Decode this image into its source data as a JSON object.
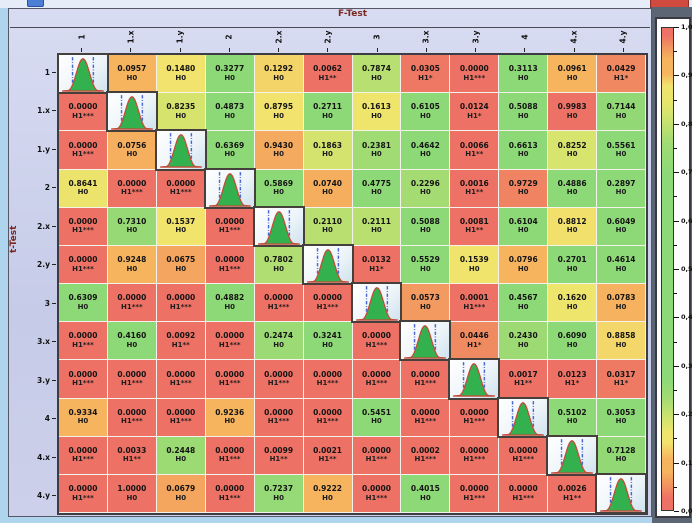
{
  "window": {
    "close_button_color": "#d04a40",
    "app_icon_color": "#4a7fd4"
  },
  "chart_data": {
    "type": "heatmap",
    "title_top": "F-Test",
    "title_left": "t-Test",
    "categories": [
      "1",
      "1.x",
      "1.y",
      "2",
      "2.x",
      "2.y",
      "3",
      "3.x",
      "3.y",
      "4",
      "4.x",
      "4.y"
    ],
    "diagonal_icon": "distribution-plot-thumbnail",
    "values": [
      [
        null,
        "0.0957",
        "0.1480",
        "0.3277",
        "0.1292",
        "0.0062",
        "0.7874",
        "0.0305",
        "0.0000",
        "0.3113",
        "0.0961",
        "0.0429"
      ],
      [
        "0.0000",
        null,
        "0.8235",
        "0.4873",
        "0.8795",
        "0.2711",
        "0.1613",
        "0.6105",
        "0.0124",
        "0.5088",
        "0.9983",
        "0.7144"
      ],
      [
        "0.0000",
        "0.0756",
        null,
        "0.6369",
        "0.9430",
        "0.1863",
        "0.2381",
        "0.4642",
        "0.0066",
        "0.6613",
        "0.8252",
        "0.5561"
      ],
      [
        "0.8641",
        "0.0000",
        "0.0000",
        null,
        "0.5869",
        "0.0740",
        "0.4775",
        "0.2296",
        "0.0016",
        "0.9729",
        "0.4886",
        "0.2897"
      ],
      [
        "0.0000",
        "0.7310",
        "0.1537",
        "0.0000",
        null,
        "0.2110",
        "0.2111",
        "0.5088",
        "0.0081",
        "0.6104",
        "0.8812",
        "0.6049"
      ],
      [
        "0.0000",
        "0.9248",
        "0.0675",
        "0.0000",
        "0.7802",
        null,
        "0.0132",
        "0.5529",
        "0.1539",
        "0.0796",
        "0.2701",
        "0.4614"
      ],
      [
        "0.6309",
        "0.0000",
        "0.0000",
        "0.4882",
        "0.0000",
        "0.0000",
        null,
        "0.0573",
        "0.0001",
        "0.4567",
        "0.1620",
        "0.0783"
      ],
      [
        "0.0000",
        "0.4160",
        "0.0092",
        "0.0000",
        "0.2474",
        "0.3241",
        "0.0000",
        null,
        "0.0446",
        "0.2430",
        "0.6090",
        "0.8858"
      ],
      [
        "0.0000",
        "0.0000",
        "0.0000",
        "0.0000",
        "0.0000",
        "0.0000",
        "0.0000",
        "0.0000",
        null,
        "0.0017",
        "0.0123",
        "0.0317"
      ],
      [
        "0.9334",
        "0.0000",
        "0.0000",
        "0.9236",
        "0.0000",
        "0.0000",
        "0.5451",
        "0.0000",
        "0.0000",
        null,
        "0.5102",
        "0.3053"
      ],
      [
        "0.0000",
        "0.0033",
        "0.2448",
        "0.0000",
        "0.0099",
        "0.0021",
        "0.0000",
        "0.0002",
        "0.0000",
        "0.0000",
        null,
        "0.7128"
      ],
      [
        "0.0000",
        "1.0000",
        "0.0679",
        "0.0000",
        "0.7237",
        "0.9222",
        "0.0000",
        "0.4015",
        "0.0000",
        "0.0000",
        "0.0026",
        null
      ]
    ],
    "hypotheses": [
      [
        null,
        "H0",
        "H0",
        "H0",
        "H0",
        "H1**",
        "H0",
        "H1*",
        "H1***",
        "H0",
        "H0",
        "H1*"
      ],
      [
        "H1***",
        null,
        "H0",
        "H0",
        "H0",
        "H0",
        "H0",
        "H0",
        "H1*",
        "H0",
        "H0",
        "H0"
      ],
      [
        "H1***",
        "H0",
        null,
        "H0",
        "H0",
        "H0",
        "H0",
        "H0",
        "H1**",
        "H0",
        "H0",
        "H0"
      ],
      [
        "H0",
        "H1***",
        "H1***",
        null,
        "H0",
        "H0",
        "H0",
        "H0",
        "H1**",
        "H0",
        "H0",
        "H0"
      ],
      [
        "H1***",
        "H0",
        "H0",
        "H1***",
        null,
        "H0",
        "H0",
        "H0",
        "H1**",
        "H0",
        "H0",
        "H0"
      ],
      [
        "H1***",
        "H0",
        "H0",
        "H1***",
        "H0",
        null,
        "H1*",
        "H0",
        "H0",
        "H0",
        "H0",
        "H0"
      ],
      [
        "H0",
        "H1***",
        "H1***",
        "H0",
        "H1***",
        "H1***",
        null,
        "H0",
        "H1***",
        "H0",
        "H0",
        "H0"
      ],
      [
        "H1***",
        "H0",
        "H1**",
        "H1***",
        "H0",
        "H0",
        "H1***",
        null,
        "H1*",
        "H0",
        "H0",
        "H0"
      ],
      [
        "H1***",
        "H1***",
        "H1***",
        "H1***",
        "H1***",
        "H1***",
        "H1***",
        "H1***",
        null,
        "H1**",
        "H1*",
        "H1*"
      ],
      [
        "H0",
        "H1***",
        "H1***",
        "H0",
        "H1***",
        "H1***",
        "H0",
        "H1***",
        "H1***",
        null,
        "H0",
        "H0"
      ],
      [
        "H1***",
        "H1**",
        "H0",
        "H1***",
        "H1**",
        "H1**",
        "H1***",
        "H1***",
        "H1***",
        "H1***",
        null,
        "H0"
      ],
      [
        "H1***",
        "H0",
        "H0",
        "H1***",
        "H0",
        "H0",
        "H1***",
        "H0",
        "H1***",
        "H1***",
        "H1**",
        null
      ]
    ],
    "colorbar": {
      "min": 0,
      "max": 1,
      "tick_labels": [
        "1,0",
        "0,9",
        "0,8",
        "0,7",
        "0,6",
        "0,5",
        "0,4",
        "0,3",
        "0,2",
        "0,1",
        "0,0"
      ]
    },
    "colormap": [
      [
        0.0,
        "#ee7165"
      ],
      [
        0.025,
        "#ee7165"
      ],
      [
        0.05,
        "#f19160"
      ],
      [
        0.08,
        "#f6b45e"
      ],
      [
        0.105,
        "#f6b45e"
      ],
      [
        0.14,
        "#f2e26e"
      ],
      [
        0.16,
        "#f0e56d"
      ],
      [
        0.19,
        "#cfe36e"
      ],
      [
        0.23,
        "#a5db73"
      ],
      [
        0.27,
        "#8ed977"
      ],
      [
        0.7,
        "#8ed977"
      ],
      [
        0.76,
        "#9fdb74"
      ],
      [
        0.815,
        "#cfe36e"
      ],
      [
        0.84,
        "#e3e56c"
      ],
      [
        0.88,
        "#f2e26e"
      ],
      [
        0.905,
        "#f6b45e"
      ],
      [
        0.935,
        "#f6b45e"
      ],
      [
        0.965,
        "#f08f60"
      ],
      [
        0.985,
        "#ee7165"
      ],
      [
        1.0,
        "#ee7165"
      ]
    ]
  }
}
